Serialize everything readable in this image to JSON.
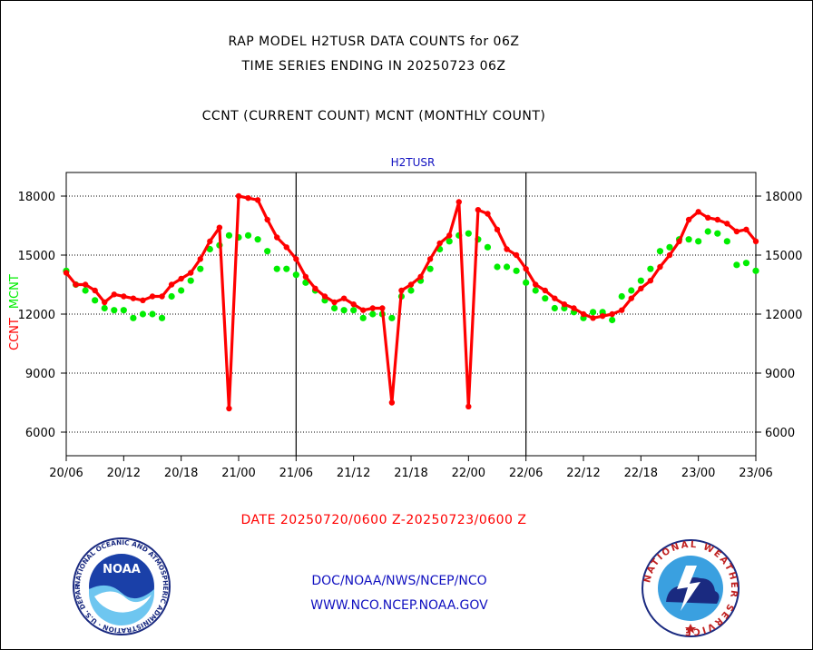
{
  "header": {
    "title1": "RAP MODEL H2TUSR DATA COUNTS for 06Z",
    "title2": "TIME SERIES ENDING IN 20250723 06Z",
    "subtitle": "CCNT (CURRENT COUNT) MCNT (MONTHLY COUNT)"
  },
  "footer": {
    "date_range": "DATE 20250720/0600 Z-20250723/0600 Z",
    "org": "DOC/NOAA/NWS/NCEP/NCO",
    "url": "WWW.NCO.NCEP.NOAA.GOV"
  },
  "logos": {
    "noaa_text": "NOAA",
    "nws_ring": "NATIONAL WEATHER SERVICE",
    "noaa_ring": "NATIONAL OCEANIC AND ATMOSPHERIC ADMINISTRATION · U.S. DEPARTMENT OF COMMERCE ·"
  },
  "colors": {
    "ccnt": "#ff0000",
    "mcnt": "#00ee00",
    "title": "#1010c0"
  },
  "chart_data": {
    "type": "line",
    "title": "H2TUSR",
    "ylabel_ccnt": "CCNT",
    "ylabel_mcnt": "MCNT",
    "ylim": [
      4800,
      19200
    ],
    "yticks": [
      6000,
      9000,
      12000,
      15000,
      18000
    ],
    "ytick_labels": [
      "6000",
      "9000",
      "12000",
      "15000",
      "18000"
    ],
    "xlim": [
      0,
      72
    ],
    "xtick_positions": [
      0,
      6,
      12,
      18,
      24,
      30,
      36,
      42,
      48,
      54,
      60,
      66,
      72
    ],
    "xtick_labels": [
      "20/06",
      "20/12",
      "20/18",
      "21/00",
      "21/06",
      "21/12",
      "21/18",
      "22/00",
      "22/06",
      "22/12",
      "22/18",
      "23/00",
      "23/06"
    ],
    "day_lines": [
      24,
      48
    ],
    "grid": "horizontal dotted",
    "series": [
      {
        "name": "CCNT",
        "color": "#ff0000",
        "x": [
          0,
          1,
          2,
          3,
          4,
          5,
          6,
          7,
          8,
          9,
          10,
          11,
          12,
          13,
          14,
          15,
          16,
          17,
          18,
          19,
          20,
          21,
          22,
          23,
          24,
          25,
          26,
          27,
          28,
          29,
          30,
          31,
          32,
          33,
          34,
          35,
          36,
          37,
          38,
          39,
          40,
          41,
          42,
          43,
          44,
          45,
          46,
          47,
          48,
          49,
          50,
          51,
          52,
          53,
          54,
          55,
          56,
          57,
          58,
          59,
          60,
          61,
          62,
          63,
          64,
          65,
          66,
          67,
          68,
          69,
          70,
          71,
          72
        ],
        "values": [
          14100,
          13500,
          13500,
          13200,
          12600,
          13000,
          12900,
          12800,
          12700,
          12900,
          12900,
          13500,
          13800,
          14100,
          14800,
          15700,
          16400,
          7200,
          18000,
          17900,
          17800,
          16800,
          15900,
          15400,
          14800,
          13900,
          13300,
          12900,
          12600,
          12800,
          12500,
          12200,
          12300,
          12300,
          7500,
          13200,
          13500,
          13900,
          14800,
          15600,
          16000,
          17700,
          7300,
          17300,
          17100,
          16300,
          15300,
          15000,
          14300,
          13500,
          13200,
          12800,
          12500,
          12300,
          12000,
          11800,
          11900,
          12000,
          12200,
          12800,
          13300,
          13700,
          14400,
          15000,
          15700,
          16800,
          17200,
          16900,
          16800,
          16600,
          16200,
          16300,
          15700
        ]
      },
      {
        "name": "MCNT",
        "color": "#00ee00",
        "x": [
          0,
          1,
          2,
          3,
          4,
          5,
          6,
          7,
          8,
          9,
          10,
          11,
          12,
          13,
          14,
          15,
          16,
          17,
          18,
          19,
          20,
          21,
          22,
          23,
          24,
          25,
          26,
          27,
          28,
          29,
          30,
          31,
          32,
          33,
          34,
          35,
          36,
          37,
          38,
          39,
          40,
          41,
          42,
          43,
          44,
          45,
          46,
          47,
          48,
          49,
          50,
          51,
          52,
          53,
          54,
          55,
          56,
          57,
          58,
          59,
          60,
          61,
          62,
          63,
          64,
          65,
          66,
          67,
          68,
          69,
          70,
          71,
          72
        ],
        "values": [
          14200,
          13500,
          13200,
          12700,
          12300,
          12200,
          12200,
          11800,
          12000,
          12000,
          11800,
          12900,
          13200,
          13700,
          14300,
          15300,
          15500,
          16000,
          15900,
          16000,
          15800,
          15200,
          14300,
          14300,
          14000,
          13600,
          13200,
          12700,
          12300,
          12200,
          12200,
          11800,
          12000,
          12000,
          11800,
          12900,
          13200,
          13700,
          14300,
          15300,
          15700,
          16000,
          16100,
          15800,
          15400,
          14400,
          14400,
          14200,
          13600,
          13200,
          12800,
          12300,
          12300,
          12100,
          11800,
          12100,
          12100,
          11700,
          12900,
          13200,
          13700,
          14300,
          15200,
          15400,
          15800,
          15800,
          15700,
          16200,
          16100,
          15700,
          14500,
          14600,
          14200
        ]
      }
    ]
  }
}
